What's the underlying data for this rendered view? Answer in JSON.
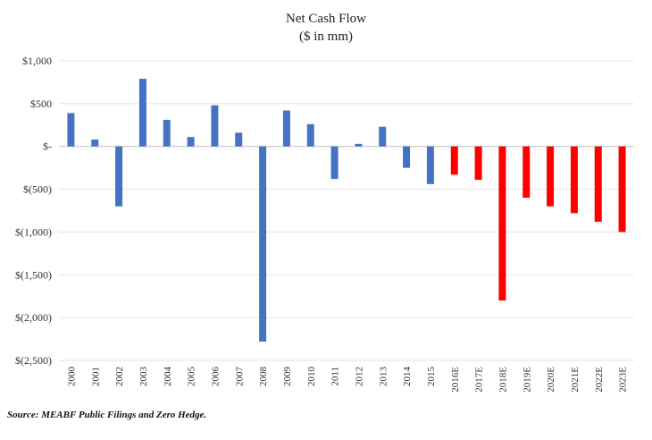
{
  "chart_data": {
    "type": "bar",
    "title": "Net Cash Flow",
    "subtitle": "($ in mm)",
    "xlabel": "",
    "ylabel": "",
    "ylim": [
      -2500,
      1000
    ],
    "yticks": [
      1000,
      500,
      0,
      -500,
      -1000,
      -1500,
      -2000,
      -2500
    ],
    "ytick_labels": [
      "$1,000",
      "$500",
      "$-",
      "$(500)",
      "$(1,000)",
      "$(1,500)",
      "$(2,000)",
      "$(2,500)"
    ],
    "grid": true,
    "categories": [
      "2000",
      "2001",
      "2002",
      "2003",
      "2004",
      "2005",
      "2006",
      "2007",
      "2008",
      "2009",
      "2010",
      "2011",
      "2012",
      "2013",
      "2014",
      "2015",
      "2016E",
      "2017E",
      "2018E",
      "2019E",
      "2020E",
      "2021E",
      "2022E",
      "2023E"
    ],
    "values": [
      390,
      80,
      -700,
      790,
      310,
      110,
      480,
      160,
      -2280,
      420,
      260,
      -380,
      30,
      230,
      -250,
      -440,
      -330,
      -390,
      -1800,
      -600,
      -700,
      -780,
      -880,
      -1000
    ],
    "series_colors": {
      "actual": "#4472c4",
      "estimate": "#ff0000"
    },
    "estimate_start_index": 16
  },
  "source_note": "Source:  MEABF Public Filings and Zero Hedge."
}
